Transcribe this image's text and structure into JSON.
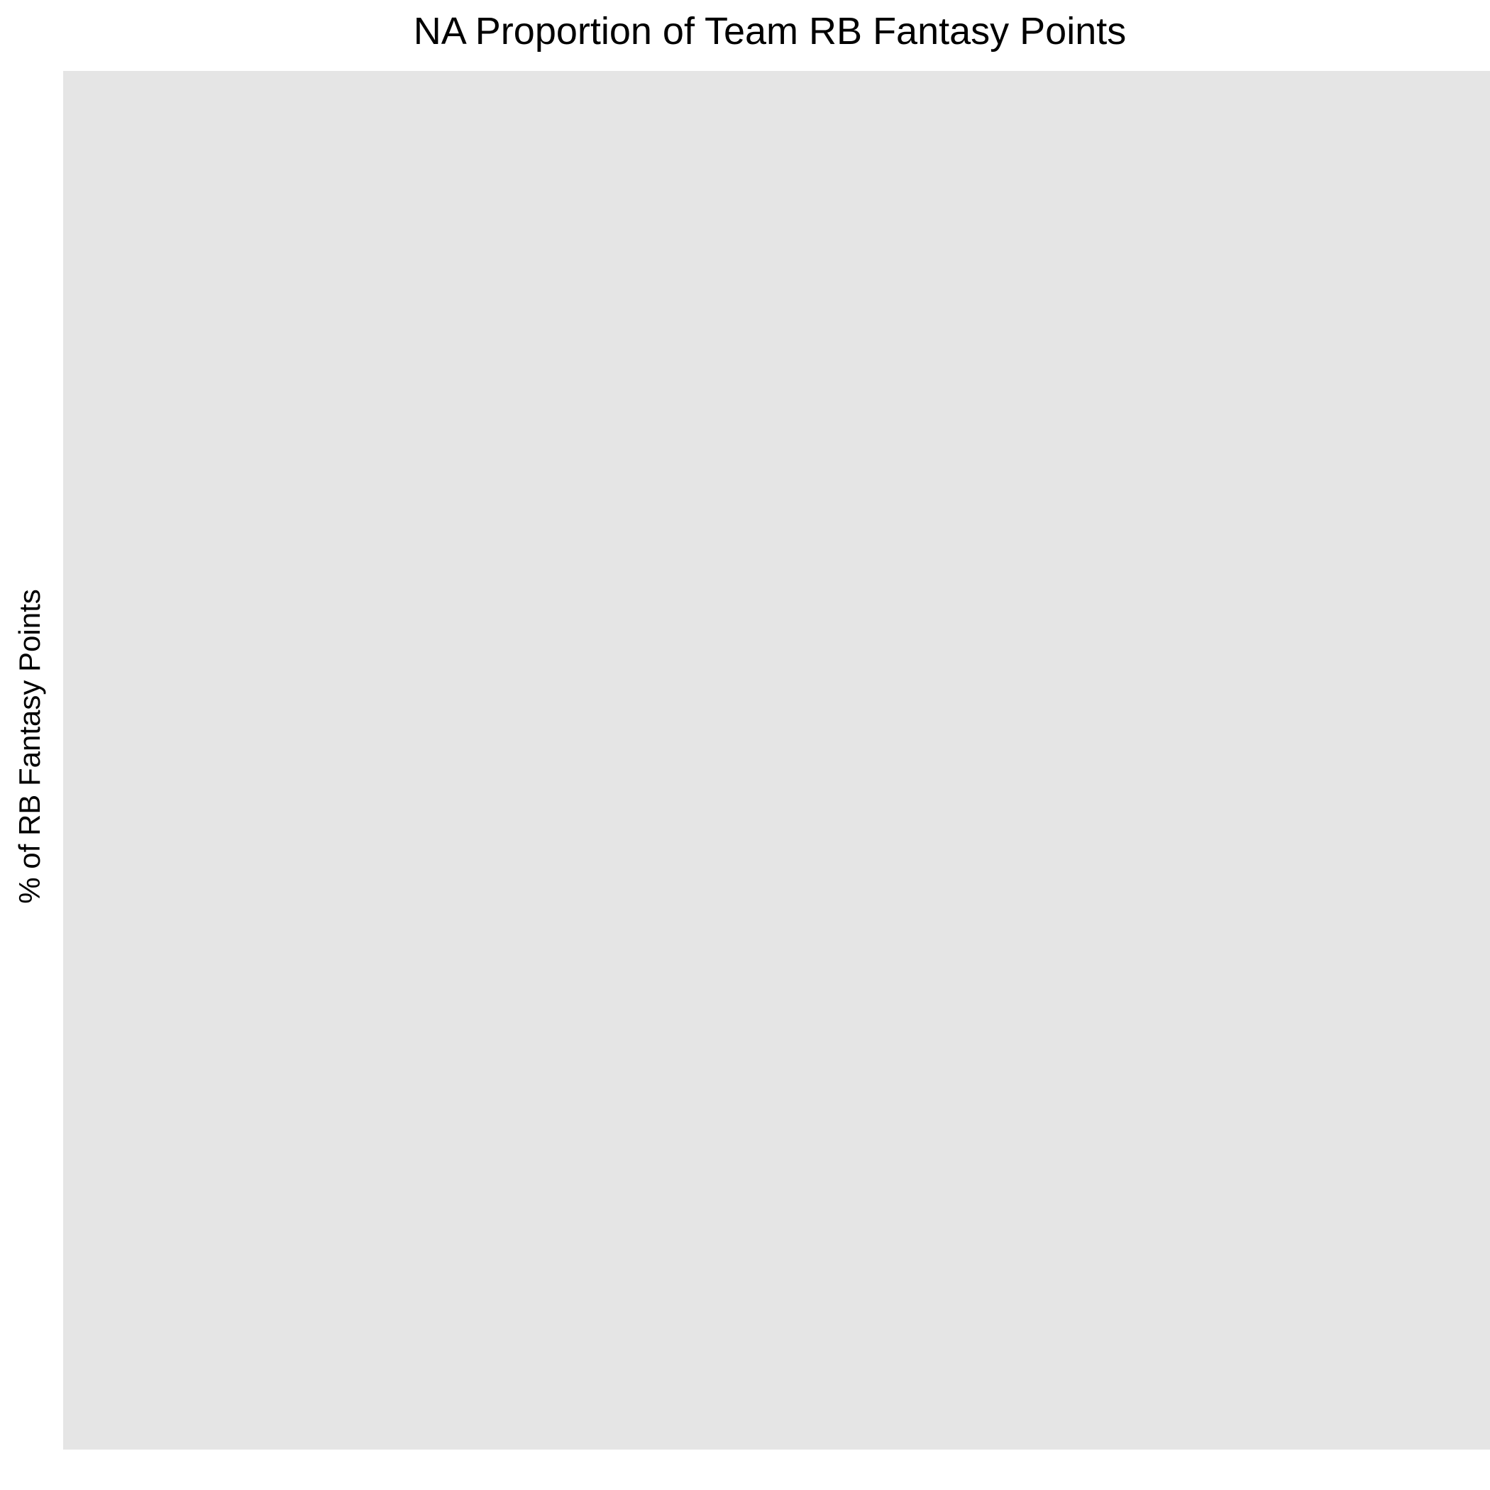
{
  "chart_data": {
    "type": "bar",
    "title": "NA Proportion of Team RB Fantasy Points",
    "xlabel": "",
    "ylabel": "% of RB Fantasy Points",
    "categories": [],
    "values": [],
    "grid": false,
    "legend": "none"
  },
  "colors": {
    "panel_background": "#e5e5e5",
    "text": "#000000",
    "page_background": "#ffffff"
  }
}
